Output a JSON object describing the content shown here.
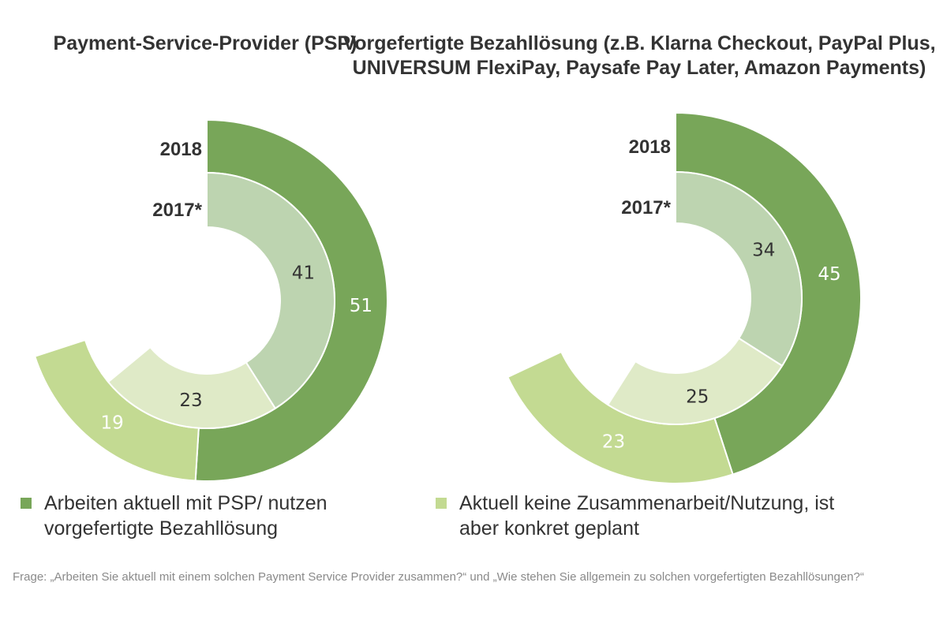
{
  "chart_data": [
    {
      "type": "donut",
      "title": "Payment-Service-Provider (PSP)",
      "rings": [
        {
          "label": "2018",
          "values": [
            51,
            19
          ]
        },
        {
          "label": "2017*",
          "values": [
            41,
            23
          ]
        }
      ]
    },
    {
      "type": "donut",
      "title": "Vorgefertigte Bezahllösung (z.B. Klarna Checkout, PayPal Plus, UNIVERSUM FlexiPay, Paysafe Pay Later, Amazon Payments)",
      "rings": [
        {
          "label": "2018",
          "values": [
            45,
            23
          ]
        },
        {
          "label": "2017*",
          "values": [
            34,
            25
          ]
        }
      ]
    }
  ],
  "legend": [
    {
      "label": "Arbeiten aktuell mit PSP/ nutzen vorgefertigte Bezahllösung",
      "color": "#78a659"
    },
    {
      "label": "Aktuell keine Zusammenarbeit/Nutzung, ist aber konkret geplant",
      "color": "#c3da92"
    }
  ],
  "colors": {
    "outer_main": "#78a659",
    "outer_planned": "#c3da92",
    "inner_main": "#bdd4b0",
    "inner_planned": "#dfeac7"
  },
  "note": "Frage: „Arbeiten Sie aktuell mit einem solchen Payment Service Provider zusammen?“ und „Wie stehen Sie allgemein zu solchen vorgefertigten Bezahllösungen?“"
}
